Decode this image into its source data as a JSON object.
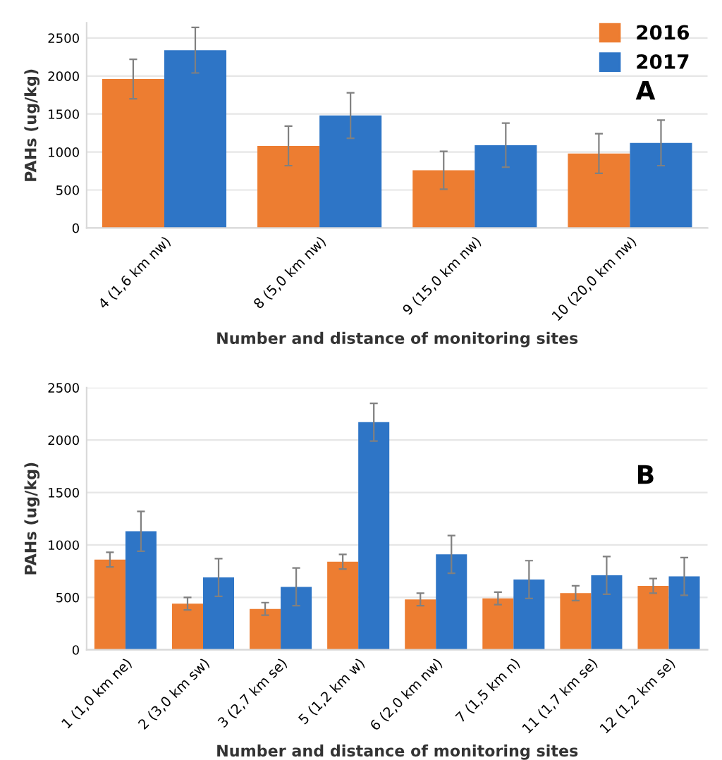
{
  "chart_data": [
    {
      "type": "bar",
      "categories": [
        "4 (1,6 km nw)",
        "8 (5,0 km nw)",
        "9 (15,0 km nw)",
        "10 (20,0 km nw)"
      ],
      "series": [
        {
          "name": "2016",
          "color": "#ed7d31",
          "values": [
            1960,
            1080,
            760,
            980
          ],
          "errors": [
            260,
            260,
            250,
            260
          ]
        },
        {
          "name": "2017",
          "color": "#2e75c6",
          "values": [
            2340,
            1480,
            1090,
            1120
          ],
          "errors": [
            300,
            300,
            290,
            300
          ]
        }
      ],
      "xlabel": "Number and distance of monitoring sites",
      "ylabel": "PAHs (ug/kg)",
      "ylim": [
        0,
        2700
      ],
      "yticks": [
        0,
        500,
        1000,
        1500,
        2000,
        2500
      ],
      "grid": "y",
      "legend": "top right",
      "annotations": [
        "A"
      ]
    },
    {
      "type": "bar",
      "categories": [
        "1 (1,0 km ne)",
        "2 (3,0 km sw)",
        "3 (2,7 km se)",
        "5 (1,2 km w)",
        "6 (2,0 km nw)",
        "7 (1,5 km n)",
        "11 (1,7 km se)",
        "12 (1,2 km se)"
      ],
      "series": [
        {
          "color": "#ed7d31",
          "values": [
            860,
            440,
            390,
            840,
            480,
            490,
            540,
            610
          ],
          "errors": [
            70,
            60,
            60,
            70,
            60,
            60,
            70,
            70
          ]
        },
        {
          "color": "#2e75c6",
          "values": [
            1130,
            690,
            600,
            2170,
            910,
            670,
            710,
            700
          ],
          "errors": [
            190,
            180,
            180,
            180,
            180,
            180,
            180,
            180
          ]
        }
      ],
      "xlabel": "Number and distance of monitoring sites",
      "ylabel": "PAHs (ug/kg)",
      "ylim": [
        0,
        2500
      ],
      "yticks": [
        0,
        500,
        1000,
        1500,
        2000,
        2500
      ],
      "grid": "y",
      "annotations": [
        "B"
      ]
    }
  ]
}
